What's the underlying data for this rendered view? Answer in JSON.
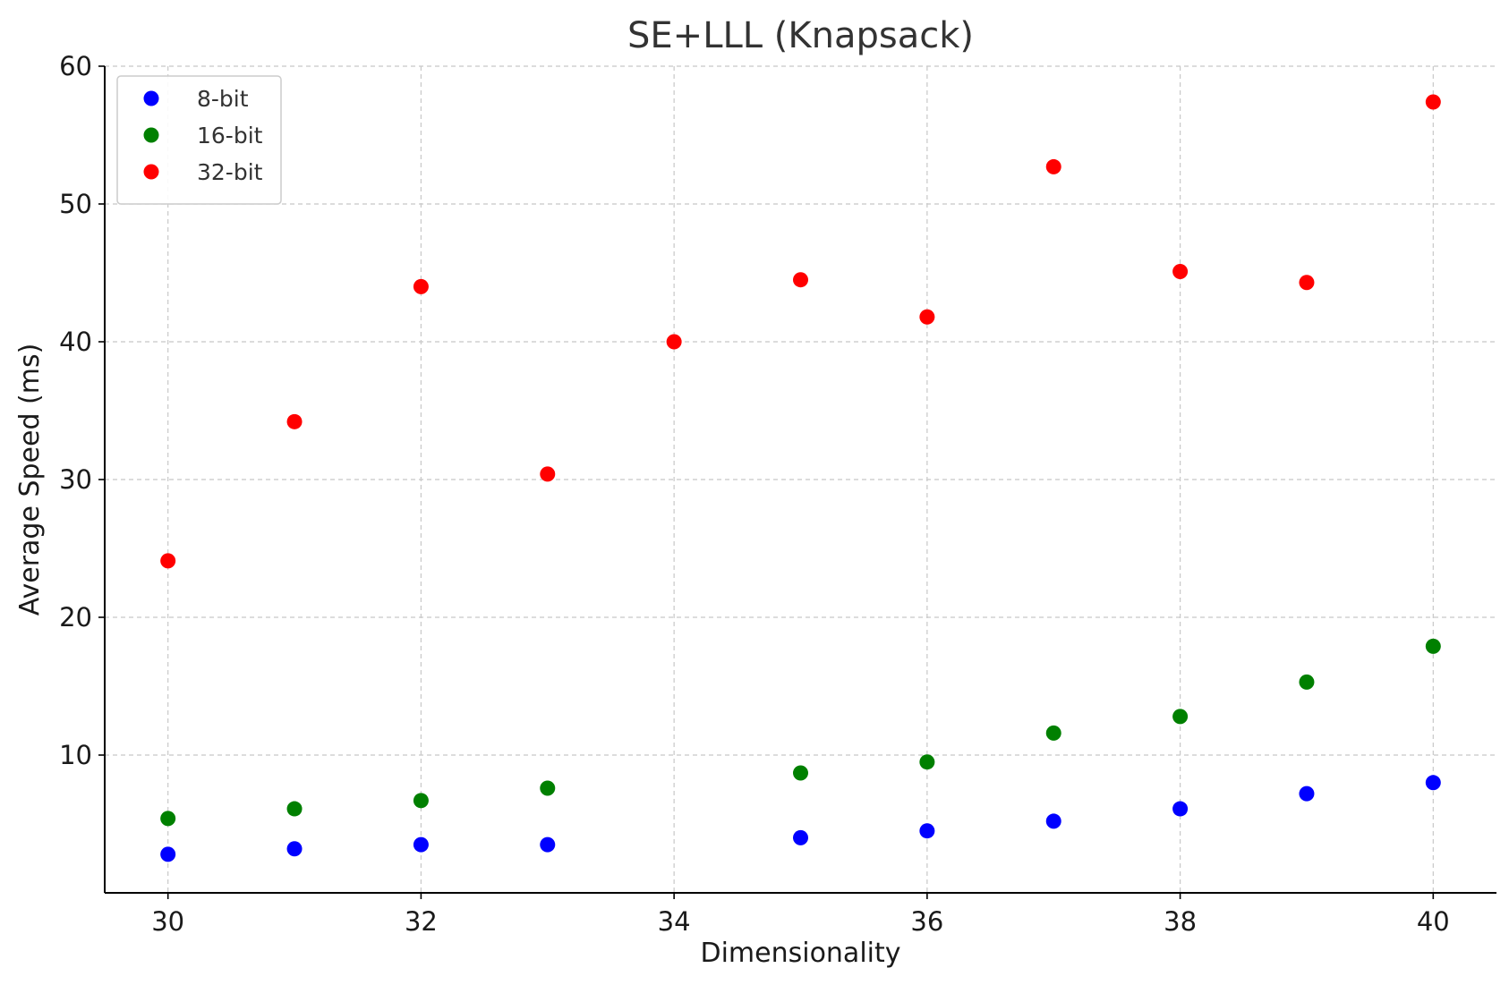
{
  "chart_data": {
    "type": "scatter",
    "title": "SE+LLL (Knapsack)",
    "xlabel": "Dimensionality",
    "ylabel": "Average Speed (ms)",
    "xlim": [
      29.5,
      40.5
    ],
    "ylim": [
      0,
      60
    ],
    "xticks": [
      30,
      32,
      34,
      36,
      38,
      40
    ],
    "yticks": [
      10,
      20,
      30,
      40,
      50,
      60
    ],
    "grid": true,
    "legend_position": "upper-left",
    "series": [
      {
        "name": "8-bit",
        "color": "#0000ff",
        "x": [
          30,
          31,
          32,
          33,
          35,
          36,
          37,
          38,
          39,
          40
        ],
        "y": [
          2.8,
          3.2,
          3.5,
          3.5,
          4.0,
          4.5,
          5.2,
          6.1,
          7.2,
          8.0
        ]
      },
      {
        "name": "16-bit",
        "color": "#008000",
        "x": [
          30,
          31,
          32,
          33,
          35,
          36,
          37,
          38,
          39,
          40
        ],
        "y": [
          5.4,
          6.1,
          6.7,
          7.6,
          8.7,
          9.5,
          11.6,
          12.8,
          15.3,
          17.9
        ]
      },
      {
        "name": "32-bit",
        "color": "#ff0000",
        "x": [
          30,
          31,
          32,
          33,
          34,
          35,
          36,
          37,
          38,
          39,
          40
        ],
        "y": [
          24.1,
          34.2,
          44.0,
          30.4,
          40.0,
          44.5,
          41.8,
          52.7,
          45.1,
          44.3,
          57.4
        ]
      }
    ]
  }
}
